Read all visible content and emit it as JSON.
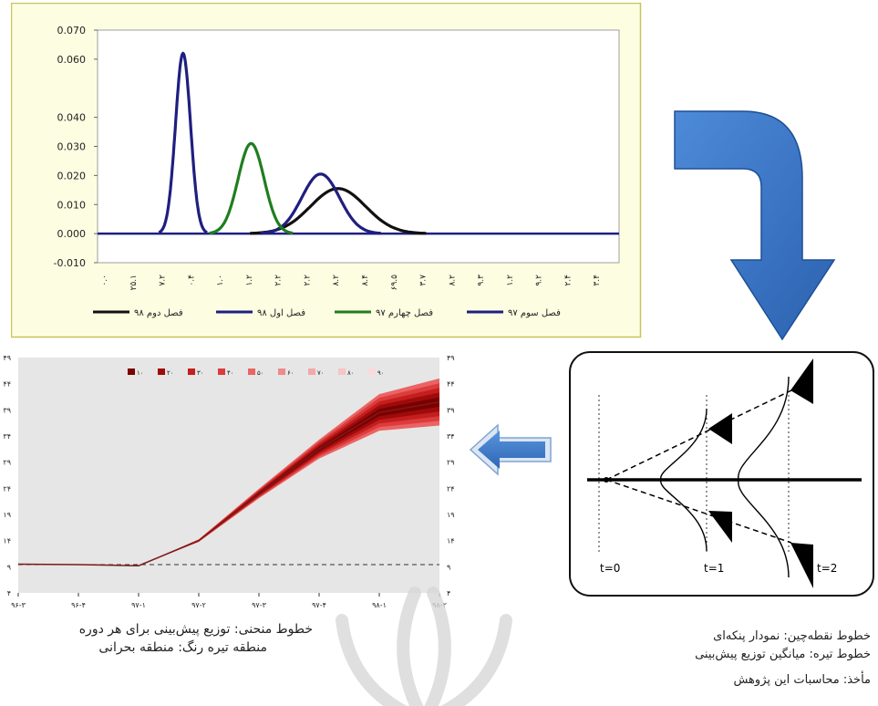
{
  "colors": {
    "panel_bg": "#fdfde2",
    "panel_border": "#c9c45a",
    "season2_98": "#111111",
    "season1_98": "#1f1f80",
    "season4_97": "#1e7e1e",
    "season3_97": "#1f1f80",
    "fan_bg": "#e6e6e6",
    "fan_line": "#7a1a1a",
    "arrow_blue": "#2f6fc0"
  },
  "chart_data": [
    {
      "type": "line",
      "ylim": [
        -0.01,
        0.07
      ],
      "y_ticks": [
        "0.070",
        "0.060",
        "0.040",
        "0.030",
        "0.020",
        "0.010",
        "0.000",
        "-0.010"
      ],
      "y_tick_values": [
        0.07,
        0.06,
        0.04,
        0.03,
        0.02,
        0.01,
        0.0,
        -0.01
      ],
      "x_ticks": [
        "۰.۰",
        "۲۵.۱",
        "۷.۲",
        "۰.۴",
        "۱.۰",
        "۱.۲",
        "۲.۲",
        "۲.۲",
        "۸.۲",
        "۸.۴",
        "۶۹.۵",
        "۳.۷",
        "۸.۲",
        "۹.۳",
        "۱.۲",
        "۹.۲",
        "۲.۴",
        "۳.۴"
      ],
      "x_range": [
        0,
        18
      ],
      "legend": [
        "فصل دوم ۹۸",
        "فصل اول ۹۸",
        "فصل چهارم ۹۷",
        "فصل سوم ۹۷"
      ],
      "series": [
        {
          "name": "فصل سوم ۹۷",
          "mean": 2.95,
          "sd": 0.26,
          "peak": 0.062
        },
        {
          "name": "فصل چهارم ۹۷",
          "mean": 5.3,
          "sd": 0.45,
          "peak": 0.031
        },
        {
          "name": "فصل اول ۹۸",
          "mean": 7.7,
          "sd": 0.65,
          "peak": 0.0205
        },
        {
          "name": "فصل دوم ۹۸",
          "mean": 8.3,
          "sd": 0.95,
          "peak": 0.0155
        }
      ]
    },
    {
      "type": "area",
      "legend": [
        "۱۰",
        "۲۰",
        "۳۰",
        "۴۰",
        "۵۰",
        "۶۰",
        "۷۰",
        "۸۰",
        "۹۰"
      ],
      "legend_colors": [
        "#7a0000",
        "#9e0b0b",
        "#c41e1e",
        "#dc3c3c",
        "#ea6464",
        "#f08a8a",
        "#f4a8a8",
        "#f8c4c4",
        "#fbdada"
      ],
      "x_ticks": [
        "۹۶-۳",
        "۹۶-۴",
        "۹۷-۱",
        "۹۷-۲",
        "۹۷-۳",
        "۹۷-۴",
        "۹۸-۱",
        "۹۸-۲"
      ],
      "y_ticks": [
        "۴۹",
        "۴۴",
        "۳۹",
        "۳۴",
        "۲۹",
        "۲۴",
        "۱۹",
        "۱۴",
        "۹",
        "۴"
      ],
      "y_tick_values": [
        49,
        44,
        39,
        34,
        29,
        24,
        19,
        14,
        9,
        4
      ],
      "ylim": [
        4,
        49
      ],
      "threshold": 9.4,
      "center": [
        9.5,
        9.4,
        9.2,
        14.0,
        23.0,
        31.5,
        38.5,
        40.5
      ],
      "half_widths": [
        0,
        0,
        0,
        0.25,
        0.9,
        1.8,
        3.5,
        4.5
      ]
    }
  ],
  "fan_diagram": {
    "labels": [
      "t=0",
      "t=1",
      "t=2"
    ]
  },
  "captions": {
    "left_line1": "خطوط منحنی: توزیع پیش‌بینی برای هر دوره",
    "left_line2": "منطقه تیره رنگ: منطقه بحرانی",
    "right_line1": "خطوط نقطه‌چین: نمودار پنکه‌ای",
    "right_line2": "خطوط تیره: میانگین توزیع پیش‌بینی",
    "right_line3": "مأخذ: محاسبات این پژوهش"
  }
}
